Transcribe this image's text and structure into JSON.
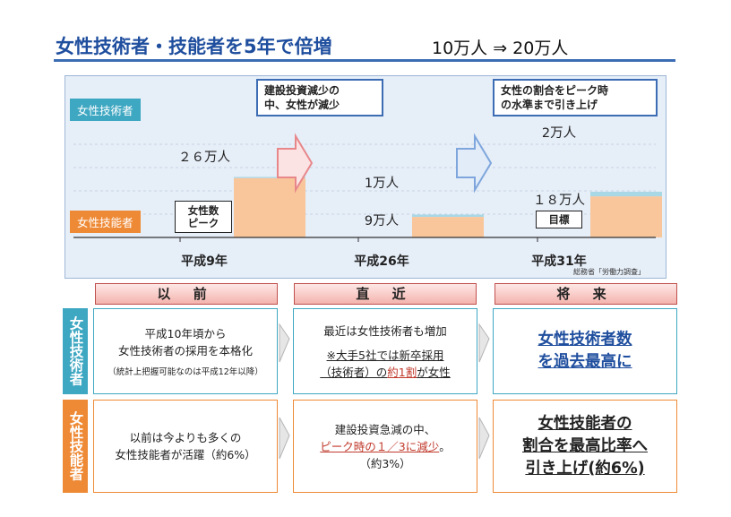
{
  "header": {
    "title": "女性技術者・技能者を5年で倍増",
    "subtitle": "10万人 ⇒ 20万人"
  },
  "chart_data": {
    "type": "bar",
    "stacked": true,
    "categories": [
      "平成9年",
      "平成26年",
      "平成31年"
    ],
    "series": [
      {
        "name": "女性技術者",
        "values": [
          0.5,
          1,
          2
        ]
      },
      {
        "name": "女性技能者",
        "values": [
          26,
          9,
          18
        ]
      }
    ],
    "value_labels": {
      "tech": [
        "",
        "1万人",
        "2万人"
      ],
      "skill": [
        "２６万人",
        "9万人",
        "１８万人"
      ]
    },
    "tags": [
      "女性数\nピーク",
      "",
      "目標"
    ],
    "callouts": [
      "建設投資減少の\n中、女性が減少",
      "女性の割合をピーク時\nの水準まで引き上げ"
    ],
    "ylim": [
      0,
      30
    ],
    "grid": true,
    "source": "総務省「労働力調査」",
    "colors": {
      "tech": "#a8d8e6",
      "skill": "#f9c69b",
      "arrow_red": "#e8878a",
      "arrow_blue": "#7ea6dc"
    }
  },
  "table": {
    "columns": [
      "以 前",
      "直 近",
      "将 来"
    ],
    "rows": [
      {
        "label": "女性技術者",
        "before": {
          "line1": "平成10年頃から",
          "line2": "女性技術者の採用を本格化",
          "note": "（統計上把握可能なのは平成12年以降）"
        },
        "recent": {
          "line1": "最近は女性技術者も増加",
          "line2": "※大手5社では新卒採用",
          "line3_pre": "（技術者）の",
          "line3_red": "約1割",
          "line3_post": "が女性"
        },
        "future": {
          "line1": "女性技術者数",
          "line2": "を過去最高に"
        }
      },
      {
        "label": "女性技能者",
        "before": {
          "line1": "以前は今よりも多くの",
          "line2": "女性技能者が活躍（約6%）"
        },
        "recent": {
          "line1": "建設投資急減の中、",
          "line2_red": "ピーク時の１／3に減少",
          "line2_post": "。",
          "line3": "（約3%）"
        },
        "future": {
          "line1": "女性技能者の",
          "line2": "割合を最高比率へ",
          "line3": "引き上げ(約6%)"
        }
      }
    ]
  }
}
